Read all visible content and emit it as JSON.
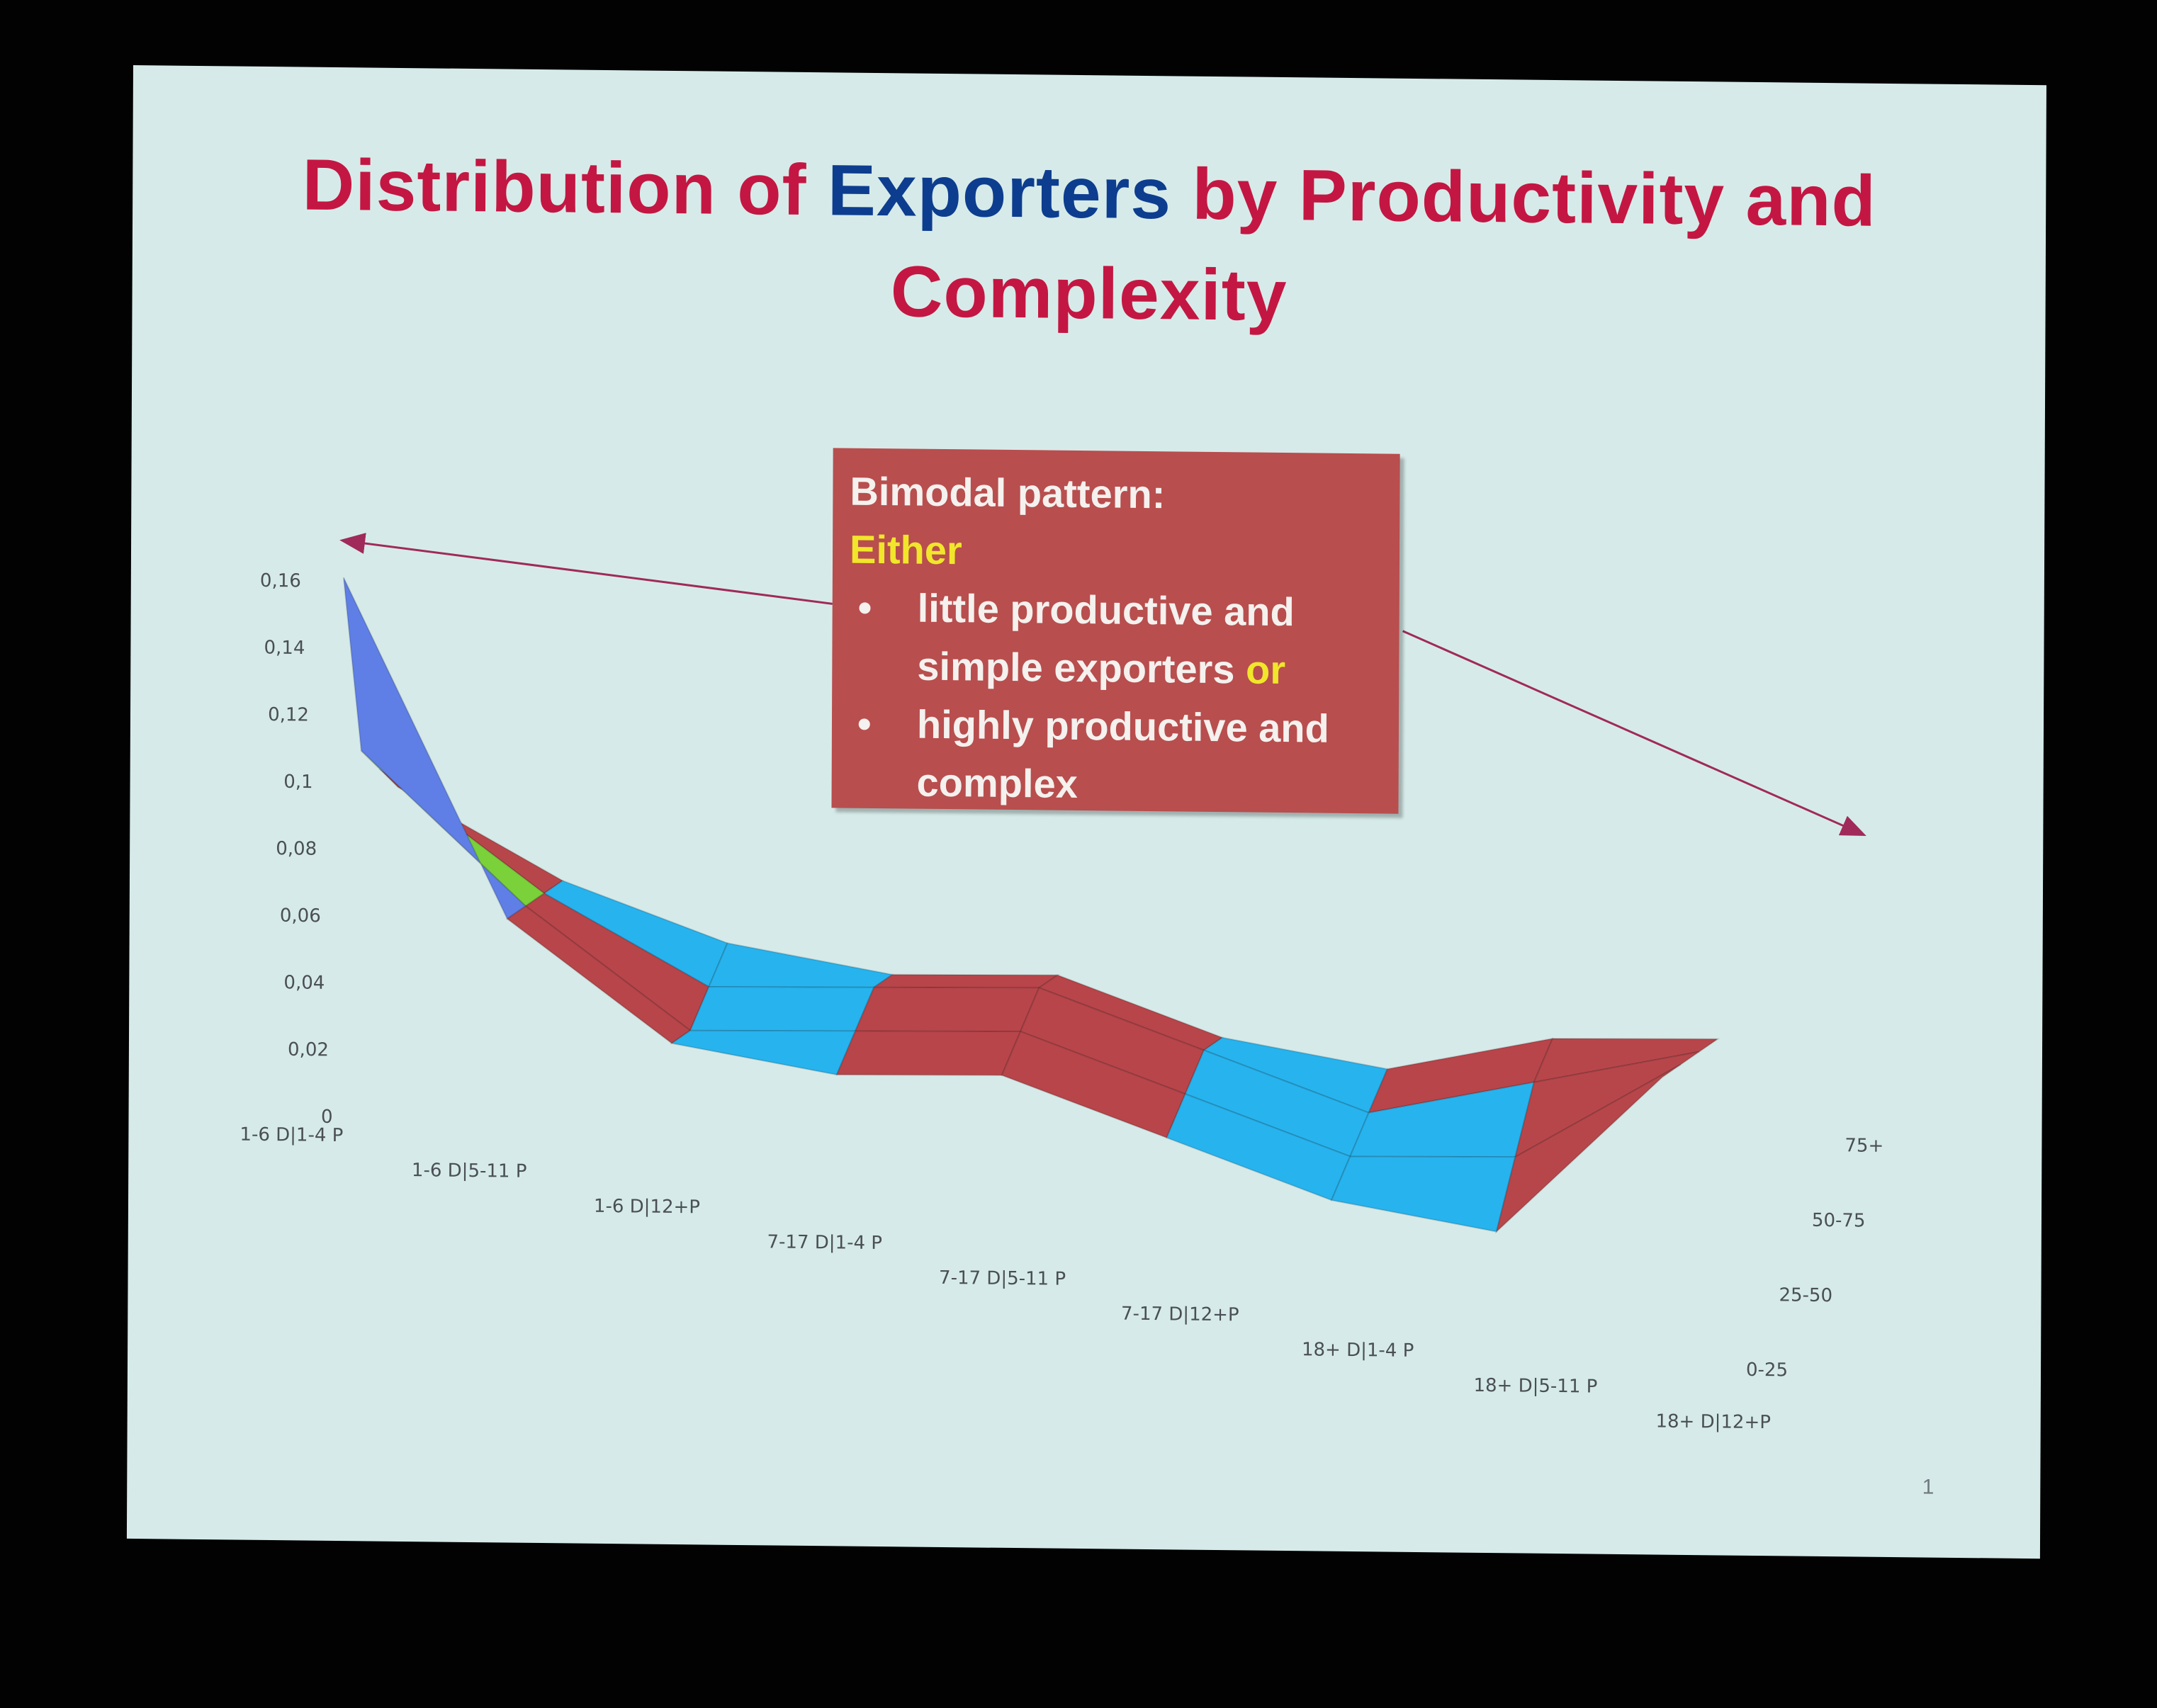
{
  "title": {
    "part1": "Distribution of",
    "part2": "Exporters",
    "part3": "by Productivity and",
    "line2": "Complexity"
  },
  "callout": {
    "heading": "Bimodal pattern:",
    "either": "Either",
    "bullet": "•",
    "item1_line1": "little productive and",
    "item1_line2": "simple exporters",
    "or": "or",
    "item2_line1": "highly productive and",
    "item2_line2": "complex"
  },
  "page_number": "1",
  "colors": {
    "title_red": "#c41642",
    "title_blue": "#0d3d8f",
    "callout_bg": "#b84e4e",
    "highlight_yellow": "#f0e62a",
    "band_0_25": "#b7464a",
    "band_25_50": "#7ad13a",
    "band_50_75": "#5f7fe6",
    "band_75_plus": "#3ec6ee",
    "band_top": "#e2b12a",
    "band_peak": "#1b6ea6",
    "surface_blue": "#27b3ee",
    "surface_red": "#b8454a"
  },
  "chart_data": {
    "type": "surface",
    "title": "",
    "x_categories": [
      "1-6 D|1-4 P",
      "1-6 D|5-11 P",
      "1-6 D|12+P",
      "7-17 D|1-4 P",
      "7-17 D|5-11 P",
      "7-17 D|12+P",
      "18+ D|1-4 P",
      "18+ D|5-11 P",
      "18+ D|12+P"
    ],
    "y_categories": [
      "0-25",
      "25-50",
      "50-75",
      "75+"
    ],
    "z_ticks": [
      "0",
      "0,02",
      "0,04",
      "0,06",
      "0,08",
      "0,1",
      "0,12",
      "0,14",
      "0,16"
    ],
    "zlim": [
      0,
      0.16
    ],
    "series": [
      {
        "name": "0-25",
        "values": [
          0.16,
          0.06,
          0.03,
          0.03,
          0.04,
          0.03,
          0.02,
          0.02,
          0.08
        ]
      },
      {
        "name": "25-50",
        "values": [
          0.09,
          0.05,
          0.02,
          0.03,
          0.04,
          0.03,
          0.02,
          0.03,
          0.07
        ]
      },
      {
        "name": "50-75",
        "values": [
          0.07,
          0.04,
          0.02,
          0.03,
          0.04,
          0.03,
          0.02,
          0.04,
          0.06
        ]
      },
      {
        "name": "75+",
        "values": [
          0.05,
          0.03,
          0.02,
          0.02,
          0.03,
          0.02,
          0.02,
          0.04,
          0.05
        ]
      }
    ]
  }
}
